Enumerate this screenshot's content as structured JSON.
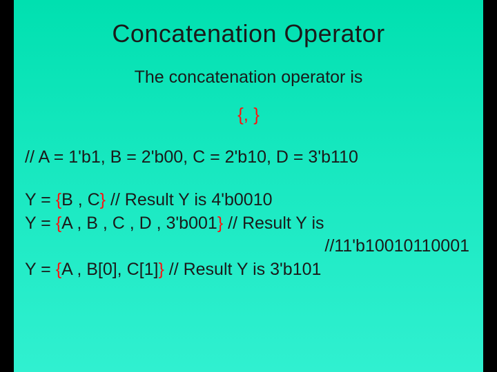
{
  "colors": {
    "background_left_bar": "#000000",
    "slide_gradient_top": "#00e0b0",
    "slide_gradient_mid": "#18e8c0",
    "slide_gradient_bottom": "#30f0d0",
    "text_color": "#1a1a1a",
    "highlight_color": "#ff1010"
  },
  "typography": {
    "title_fontsize": 36,
    "body_fontsize": 25,
    "font_family": "Arial"
  },
  "title": "Concatenation Operator",
  "subtitle": "The concatenation operator is",
  "operator_symbol": {
    "open": "{",
    "sep": ", ",
    "close": "}"
  },
  "code": {
    "decl": "// A = 1'b1, B = 2'b00, C = 2'b10, D = 3'b110",
    "line1_pre": "Y = ",
    "line1_open": "{",
    "line1_body": "B , C",
    "line1_close": "}",
    "line1_post": " // Result Y is 4'b0010",
    "line2_pre": "Y = ",
    "line2_open": "{",
    "line2_body": "A , B , C , D , 3'b001",
    "line2_close": "}",
    "line2_post": " // Result Y is",
    "line2_cont": "//11'b10010110001",
    "line3_pre": "Y = ",
    "line3_open": "{",
    "line3_body": "A , B[0], C[1]",
    "line3_close": "}",
    "line3_post": " // Result Y is 3'b101"
  }
}
